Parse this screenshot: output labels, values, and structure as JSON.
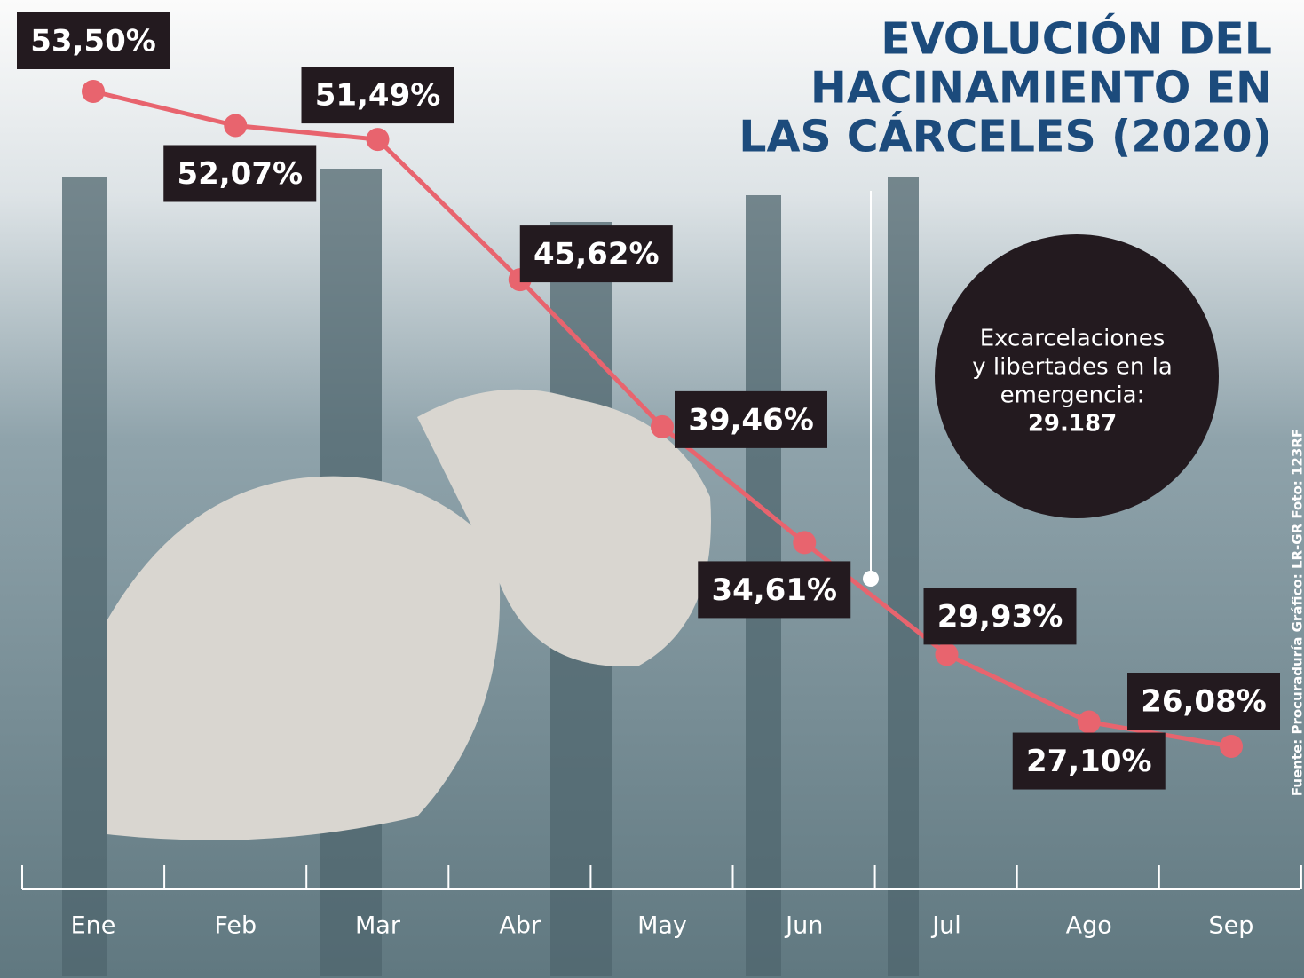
{
  "chart_data": {
    "type": "line",
    "title_lines": [
      "EVOLUCIÓN DEL",
      "HACINAMIENTO EN",
      "LAS CÁRCELES (2020)"
    ],
    "categories": [
      "Ene",
      "Feb",
      "Mar",
      "Abr",
      "May",
      "Jun",
      "Jul",
      "Ago",
      "Sep"
    ],
    "values": [
      53.5,
      52.07,
      51.49,
      45.62,
      39.46,
      34.61,
      29.93,
      27.1,
      26.08
    ],
    "value_labels": [
      "53,50%",
      "52,07%",
      "51,49%",
      "45,62%",
      "39,46%",
      "34,61%",
      "29,93%",
      "27,10%",
      "26,08%"
    ],
    "color": "#e8646e",
    "annotation": {
      "lines": [
        "Excarcelaciones",
        "y libertades en la",
        "emergencia:",
        "29.187"
      ]
    },
    "source": "Fuente: Procuraduría    Gráfico: LR-GR    Foto: 123RF"
  }
}
